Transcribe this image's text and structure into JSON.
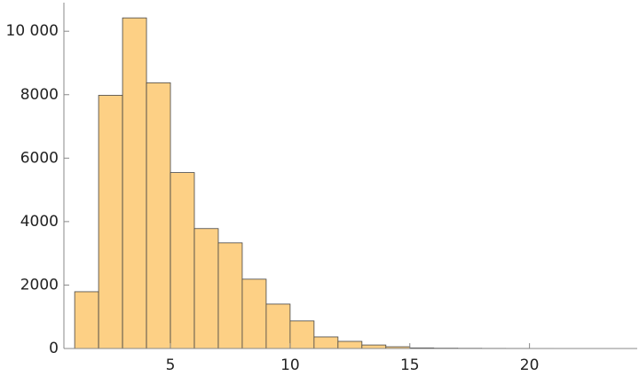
{
  "chart_data": {
    "type": "histogram",
    "bins": [
      1,
      2,
      3,
      4,
      5,
      6,
      7,
      8,
      9,
      10,
      11,
      12,
      13,
      14,
      15,
      16,
      17,
      18,
      19,
      20,
      21,
      22,
      23,
      24
    ],
    "counts": [
      1790,
      7980,
      10420,
      8375,
      5545,
      3780,
      3330,
      2185,
      1400,
      870,
      365,
      225,
      110,
      55,
      20,
      12,
      8,
      5,
      4,
      3,
      2,
      0,
      2
    ],
    "color": "#fdd085",
    "xlim": [
      0.55,
      24.5
    ],
    "xticks": [
      5,
      10,
      15,
      20
    ],
    "ylim": [
      0,
      10900
    ],
    "yticks": [
      0,
      2000,
      4000,
      6000,
      8000,
      {
        "value": 10000,
        "label": "10 000"
      }
    ],
    "grid": false
  }
}
